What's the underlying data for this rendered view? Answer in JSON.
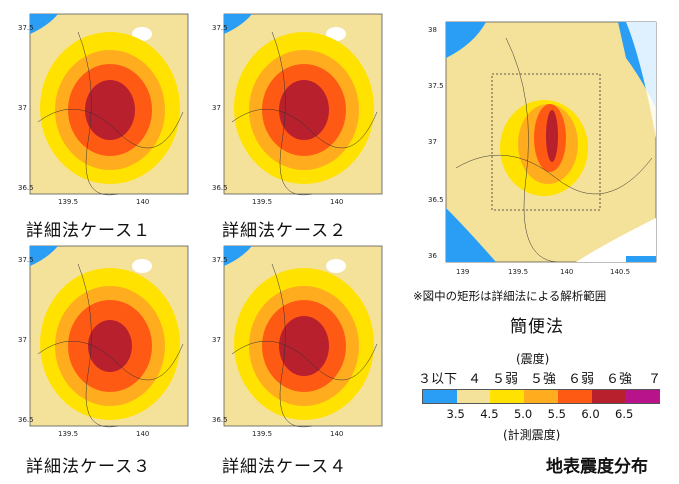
{
  "cases": [
    {
      "caption": "詳細法ケース１",
      "lat_ticks": [
        "37.5",
        "37",
        "36.5"
      ],
      "lon_ticks": [
        "139.5",
        "140"
      ]
    },
    {
      "caption": "詳細法ケース２",
      "lat_ticks": [
        "37.5",
        "37",
        "36.5"
      ],
      "lon_ticks": [
        "139.5",
        "140"
      ]
    },
    {
      "caption": "詳細法ケース３",
      "lat_ticks": [
        "37.5",
        "37",
        "36.5"
      ],
      "lon_ticks": [
        "139.5",
        "140"
      ]
    },
    {
      "caption": "詳細法ケース４",
      "lat_ticks": [
        "37.5",
        "37",
        "36.5"
      ],
      "lon_ticks": [
        "139.5",
        "140"
      ]
    }
  ],
  "simple_method": {
    "caption": "簡便法",
    "note": "※図中の矩形は詳細法による解析範囲",
    "lat_ticks": [
      "38",
      "37.5",
      "37",
      "36.5",
      "36"
    ],
    "lon_ticks": [
      "139",
      "139.5",
      "140",
      "140.5"
    ]
  },
  "legend": {
    "intensity_title": "(震度)",
    "intensity_labels": [
      "３以下",
      "４",
      "５弱",
      "５強",
      "６弱",
      "６強",
      "７"
    ],
    "measured_title": "(計測震度)",
    "measured_ticks": [
      "3.5",
      "4.5",
      "5.0",
      "5.5",
      "6.0",
      "6.5"
    ],
    "colors": [
      "#2a9df4",
      "#f4e19a",
      "#ffe200",
      "#ffad1f",
      "#ff5a14",
      "#b8202e",
      "#b8138a"
    ]
  },
  "main_title": "地表震度分布"
}
